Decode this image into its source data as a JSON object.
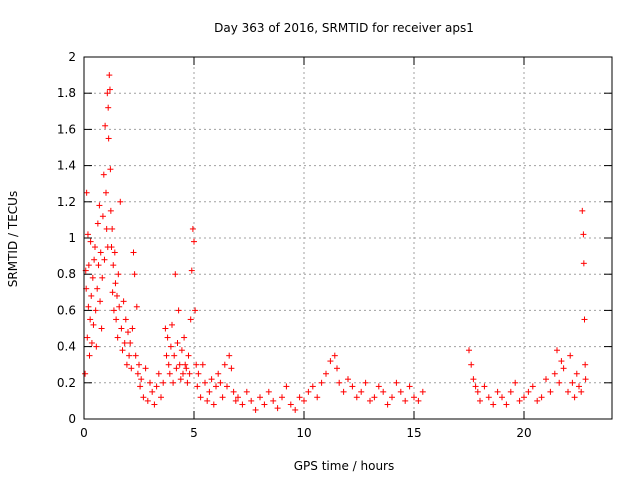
{
  "chart_data": {
    "type": "scatter",
    "title": "Day 363 of 2016, SRMTID for receiver aps1",
    "xlabel": "GPS time / hours",
    "ylabel": "SRMTID / TECUs",
    "xlim": [
      0,
      24
    ],
    "ylim": [
      0,
      2
    ],
    "x_ticks": [
      0,
      5,
      10,
      15,
      20
    ],
    "x_tick_labels": [
      "0",
      "5",
      "10",
      "15",
      "20"
    ],
    "y_ticks": [
      0,
      0.2,
      0.4,
      0.6,
      0.8,
      1,
      1.2,
      1.4,
      1.6,
      1.8,
      2
    ],
    "y_tick_labels": [
      "0",
      "0.2",
      "0.4",
      "0.6",
      "0.8",
      "1",
      "1.2",
      "1.4",
      "1.6",
      "1.8",
      "2"
    ],
    "grid": true,
    "marker": "+",
    "marker_color": "#ff0000",
    "series": [
      {
        "name": "SRMTID",
        "x": [
          0.05,
          0.08,
          0.1,
          0.12,
          0.15,
          0.18,
          0.2,
          0.22,
          0.25,
          0.28,
          0.3,
          0.33,
          0.36,
          0.4,
          0.43,
          0.46,
          0.5,
          0.53,
          0.56,
          0.6,
          0.63,
          0.66,
          0.7,
          0.73,
          0.76,
          0.8,
          0.83,
          0.86,
          0.9,
          0.93,
          0.96,
          1.0,
          1.03,
          1.06,
          1.08,
          1.1,
          1.12,
          1.15,
          1.18,
          1.2,
          1.22,
          1.25,
          1.28,
          1.3,
          1.33,
          1.36,
          1.4,
          1.43,
          1.46,
          1.5,
          1.53,
          1.56,
          1.6,
          1.65,
          1.7,
          1.75,
          1.8,
          1.85,
          1.9,
          1.95,
          2.0,
          2.05,
          2.1,
          2.15,
          2.2,
          2.25,
          2.3,
          2.35,
          2.4,
          2.45,
          2.5,
          2.55,
          2.6,
          2.7,
          2.8,
          2.9,
          3.0,
          3.1,
          3.2,
          3.3,
          3.4,
          3.5,
          3.6,
          3.7,
          3.75,
          3.8,
          3.85,
          3.9,
          3.95,
          4.0,
          4.05,
          4.1,
          4.15,
          4.2,
          4.25,
          4.3,
          4.35,
          4.4,
          4.45,
          4.5,
          4.55,
          4.6,
          4.65,
          4.7,
          4.75,
          4.8,
          4.85,
          4.9,
          4.95,
          5.0,
          5.05,
          5.1,
          5.15,
          5.2,
          5.3,
          5.4,
          5.5,
          5.6,
          5.7,
          5.8,
          5.9,
          6.0,
          6.1,
          6.2,
          6.3,
          6.4,
          6.5,
          6.6,
          6.7,
          6.8,
          6.9,
          7.0,
          7.2,
          7.4,
          7.6,
          7.8,
          8.0,
          8.2,
          8.4,
          8.6,
          8.8,
          9.0,
          9.2,
          9.4,
          9.6,
          9.8,
          10.0,
          10.2,
          10.4,
          10.6,
          10.8,
          11.0,
          11.2,
          11.4,
          11.5,
          11.6,
          11.8,
          12.0,
          12.2,
          12.4,
          12.6,
          12.8,
          13.0,
          13.2,
          13.4,
          13.6,
          13.8,
          14.0,
          14.2,
          14.4,
          14.6,
          14.8,
          15.0,
          15.2,
          15.4,
          17.5,
          17.6,
          17.7,
          17.8,
          17.9,
          18.0,
          18.2,
          18.4,
          18.6,
          18.8,
          19.0,
          19.2,
          19.4,
          19.6,
          19.8,
          20.0,
          20.2,
          20.4,
          20.6,
          20.8,
          21.0,
          21.2,
          21.4,
          21.5,
          21.6,
          21.7,
          21.8,
          22.0,
          22.1,
          22.2,
          22.3,
          22.4,
          22.5,
          22.6,
          22.65,
          22.7,
          22.72,
          22.75,
          22.78,
          22.8
        ],
        "y": [
          0.25,
          0.82,
          0.72,
          1.25,
          0.45,
          1.02,
          0.62,
          0.85,
          0.35,
          0.55,
          0.98,
          0.68,
          0.42,
          0.78,
          0.52,
          0.88,
          0.95,
          0.6,
          0.4,
          0.72,
          1.08,
          0.85,
          1.18,
          0.65,
          0.92,
          0.5,
          0.78,
          1.12,
          1.35,
          0.88,
          1.62,
          1.25,
          1.05,
          1.8,
          0.95,
          1.72,
          1.55,
          1.9,
          1.82,
          1.38,
          1.15,
          0.95,
          1.05,
          0.7,
          0.85,
          0.6,
          0.92,
          0.75,
          0.55,
          0.68,
          0.45,
          0.8,
          0.62,
          1.2,
          0.5,
          0.38,
          0.65,
          0.42,
          0.55,
          0.3,
          0.48,
          0.35,
          0.42,
          0.28,
          0.5,
          0.92,
          0.8,
          0.35,
          0.62,
          0.25,
          0.3,
          0.18,
          0.22,
          0.12,
          0.28,
          0.1,
          0.2,
          0.15,
          0.08,
          0.18,
          0.25,
          0.12,
          0.2,
          0.5,
          0.35,
          0.45,
          0.3,
          0.25,
          0.4,
          0.52,
          0.2,
          0.35,
          0.8,
          0.28,
          0.42,
          0.6,
          0.3,
          0.22,
          0.38,
          0.25,
          0.45,
          0.3,
          0.28,
          0.2,
          0.35,
          0.25,
          0.55,
          0.82,
          1.05,
          0.98,
          0.6,
          0.3,
          0.18,
          0.25,
          0.12,
          0.3,
          0.2,
          0.1,
          0.15,
          0.22,
          0.08,
          0.18,
          0.25,
          0.2,
          0.12,
          0.3,
          0.18,
          0.35,
          0.28,
          0.15,
          0.1,
          0.12,
          0.08,
          0.15,
          0.1,
          0.05,
          0.12,
          0.08,
          0.15,
          0.1,
          0.06,
          0.12,
          0.18,
          0.08,
          0.05,
          0.12,
          0.1,
          0.15,
          0.18,
          0.12,
          0.2,
          0.25,
          0.32,
          0.35,
          0.28,
          0.2,
          0.15,
          0.22,
          0.18,
          0.12,
          0.15,
          0.2,
          0.1,
          0.12,
          0.18,
          0.15,
          0.08,
          0.12,
          0.2,
          0.15,
          0.1,
          0.18,
          0.12,
          0.1,
          0.15,
          0.38,
          0.3,
          0.22,
          0.18,
          0.15,
          0.1,
          0.18,
          0.12,
          0.08,
          0.15,
          0.12,
          0.08,
          0.15,
          0.2,
          0.1,
          0.12,
          0.15,
          0.18,
          0.1,
          0.12,
          0.22,
          0.15,
          0.25,
          0.38,
          0.2,
          0.32,
          0.28,
          0.15,
          0.35,
          0.2,
          0.12,
          0.25,
          0.18,
          0.15,
          1.15,
          1.02,
          0.86,
          0.55,
          0.3,
          0.22
        ]
      }
    ]
  }
}
